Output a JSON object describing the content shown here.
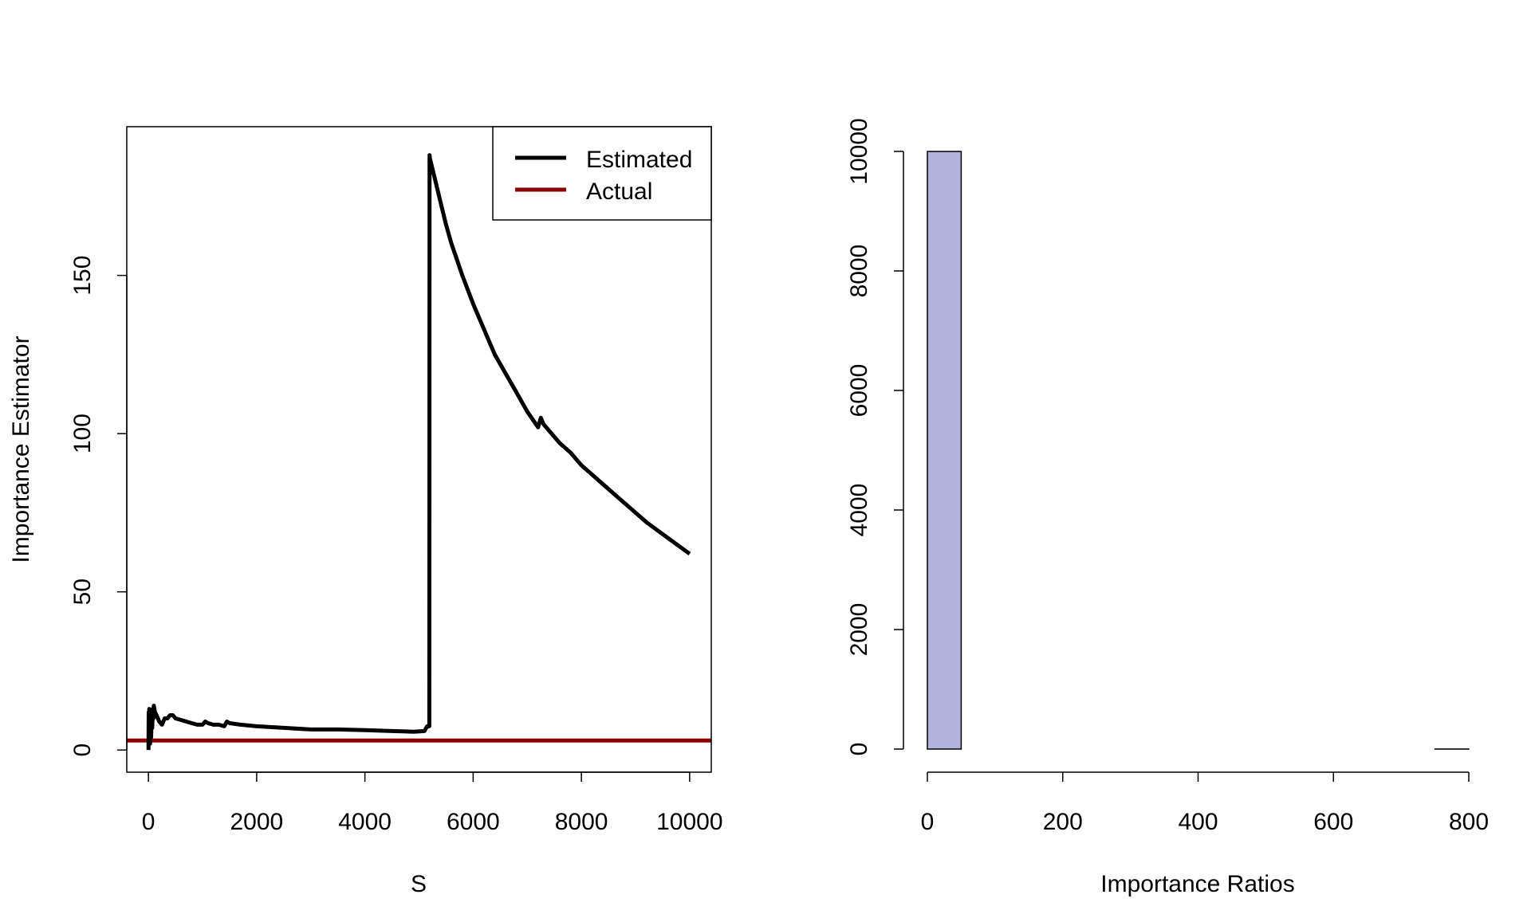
{
  "chart_data": [
    {
      "type": "line",
      "title": "",
      "xlabel": "S",
      "ylabel": "Importance Estimator",
      "xlim": [
        -400,
        10400
      ],
      "ylim": [
        -7,
        197
      ],
      "x_ticks": [
        0,
        2000,
        4000,
        6000,
        8000,
        10000
      ],
      "x_tick_labels": [
        "0",
        "2000",
        "4000",
        "6000",
        "8000",
        "10000"
      ],
      "y_ticks": [
        0,
        50,
        100,
        150
      ],
      "y_tick_labels": [
        "0",
        "50",
        "100",
        "150"
      ],
      "legend": {
        "placement": "top-right",
        "entries": [
          {
            "label": "Estimated",
            "color": "#000000"
          },
          {
            "label": "Actual",
            "color": "#8b0000"
          }
        ]
      },
      "series": [
        {
          "name": "Estimated",
          "color": "#000000",
          "x": [
            1,
            5,
            10,
            15,
            20,
            25,
            30,
            40,
            50,
            60,
            70,
            80,
            90,
            100,
            120,
            150,
            200,
            250,
            300,
            350,
            400,
            450,
            500,
            600,
            700,
            800,
            900,
            1000,
            1050,
            1100,
            1200,
            1300,
            1400,
            1450,
            1500,
            1700,
            2000,
            2500,
            3000,
            3500,
            4000,
            4500,
            4900,
            5100,
            5150,
            5190,
            5195,
            5200,
            5300,
            5400,
            5500,
            5600,
            5800,
            6000,
            6200,
            6400,
            6600,
            6800,
            7000,
            7200,
            7250,
            7300,
            7400,
            7600,
            7800,
            8000,
            8200,
            8400,
            8600,
            8800,
            9000,
            9200,
            9400,
            9600,
            9800,
            10000
          ],
          "y": [
            0,
            12,
            3,
            13,
            5,
            11,
            2,
            12,
            4,
            11,
            7,
            13,
            10,
            14,
            12,
            11,
            9,
            8,
            10,
            10,
            11,
            11,
            10,
            9.5,
            9,
            8.5,
            8,
            8,
            9,
            8.5,
            8,
            8,
            7.5,
            9,
            8.5,
            8,
            7.5,
            7,
            6.5,
            6.5,
            6.3,
            6,
            5.8,
            6,
            7.5,
            7.5,
            188,
            187,
            180,
            173,
            166,
            160,
            150,
            141,
            133,
            125,
            119,
            113,
            107,
            102,
            105,
            103,
            101,
            97,
            94,
            90,
            87,
            84,
            81,
            78,
            75,
            72,
            69.5,
            67,
            64.5,
            62
          ]
        },
        {
          "name": "Actual",
          "color": "#8b0000",
          "x": [
            -400,
            10400
          ],
          "y": [
            3,
            3
          ]
        }
      ]
    },
    {
      "type": "bar",
      "title": "",
      "xlabel": "Importance Ratios",
      "ylabel": "",
      "xlim": [
        0,
        800
      ],
      "ylim": [
        0,
        10000
      ],
      "x_ticks": [
        0,
        200,
        400,
        600,
        800
      ],
      "x_tick_labels": [
        "0",
        "200",
        "400",
        "600",
        "800"
      ],
      "y_ticks": [
        0,
        2000,
        4000,
        6000,
        8000,
        10000
      ],
      "y_tick_labels": [
        "0",
        "2000",
        "4000",
        "6000",
        "8000",
        "10000"
      ],
      "bin_edges": [
        0,
        50,
        100,
        150,
        200,
        250,
        300,
        350,
        400,
        450,
        500,
        550,
        600,
        650,
        700,
        750,
        800
      ],
      "counts": [
        9999,
        0,
        0,
        0,
        0,
        0,
        0,
        0,
        0,
        0,
        0,
        0,
        0,
        0,
        0,
        1
      ],
      "bar_color": "#b3b3de"
    }
  ]
}
